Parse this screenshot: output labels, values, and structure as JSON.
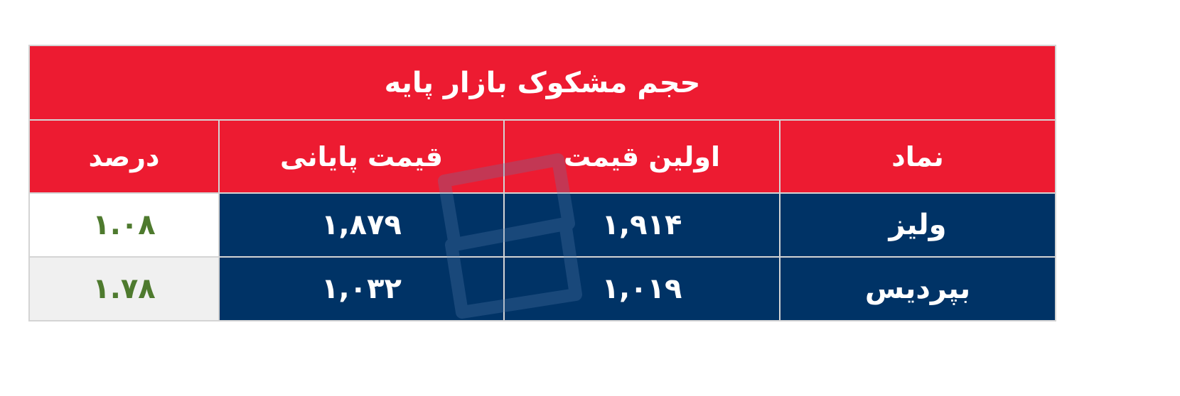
{
  "title": "حجم مشکوک بازار پایه",
  "headers": [
    "نماد",
    "اولین قیمت",
    "قیمت پایانی",
    "درصد"
  ],
  "rows": [
    {
      "symbol": "ولیز",
      "first_price": "۱,۹۱۴",
      "last_price": "۱,۸۷۹",
      "percent": "۱.۰۸"
    },
    {
      "symbol": "بپردیس",
      "first_price": "۱,۰۱۹",
      "last_price": "۱,۰۳۲",
      "percent": "۱.۷۸"
    }
  ],
  "colors": {
    "header_red": "#ED1B31",
    "cell_navy": "#003366",
    "percent_green": "#4E7A2E"
  },
  "watermark": "logo-watermark"
}
